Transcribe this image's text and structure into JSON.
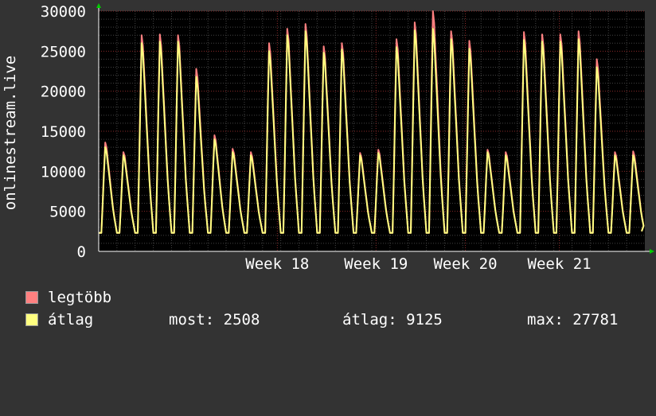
{
  "chart_data": {
    "type": "line",
    "ylabel": "onlinestream.live",
    "ylim": [
      0,
      30000
    ],
    "yticks": [
      0,
      5000,
      10000,
      15000,
      20000,
      25000,
      30000
    ],
    "xlim": [
      16.05,
      21.86
    ],
    "xticks": [
      {
        "label": "Week 18",
        "value": 17.95
      },
      {
        "label": "Week 19",
        "value": 19.0
      },
      {
        "label": "Week 20",
        "value": 19.95
      },
      {
        "label": "Week 21",
        "value": 20.95
      }
    ],
    "grid": true,
    "legend_placement": "bottom",
    "colors": {
      "background": "#333333",
      "plot_background": "#000000",
      "grid_major": "#8a2a2a",
      "grid_minor": "#444444",
      "axis": "#ffffff",
      "arrow": "#00cc00"
    },
    "series": [
      {
        "name": "legtöbb",
        "color": "#ff8080",
        "daily_peaks": [
          13600,
          12400,
          27000,
          27100,
          27000,
          22800,
          14500,
          12800,
          12400,
          26000,
          27800,
          28400,
          25600,
          26000,
          12300,
          12700,
          26500,
          28600,
          30000,
          27500,
          26300,
          12700,
          12400,
          27400,
          27100,
          27100,
          27500,
          24000,
          12400,
          12500
        ]
      },
      {
        "name": "átlag",
        "color": "#ffff80",
        "daily_peaks": [
          13000,
          12000,
          26000,
          26200,
          26200,
          21800,
          14000,
          12400,
          12000,
          25000,
          27000,
          27500,
          24800,
          25200,
          12000,
          12300,
          25500,
          27600,
          27800,
          26500,
          25300,
          12400,
          12000,
          26400,
          26200,
          26200,
          26500,
          23000,
          12000,
          12000
        ]
      }
    ],
    "daily_trough": 2300,
    "last_value": 2508
  },
  "legend": {
    "items": [
      {
        "label": "legtöbb",
        "color": "#ff8080"
      },
      {
        "label": "átlag",
        "color": "#ffff80"
      }
    ],
    "stats": {
      "now": "most: 2508",
      "avg": "átlag: 9125",
      "max": "max: 27781"
    }
  }
}
